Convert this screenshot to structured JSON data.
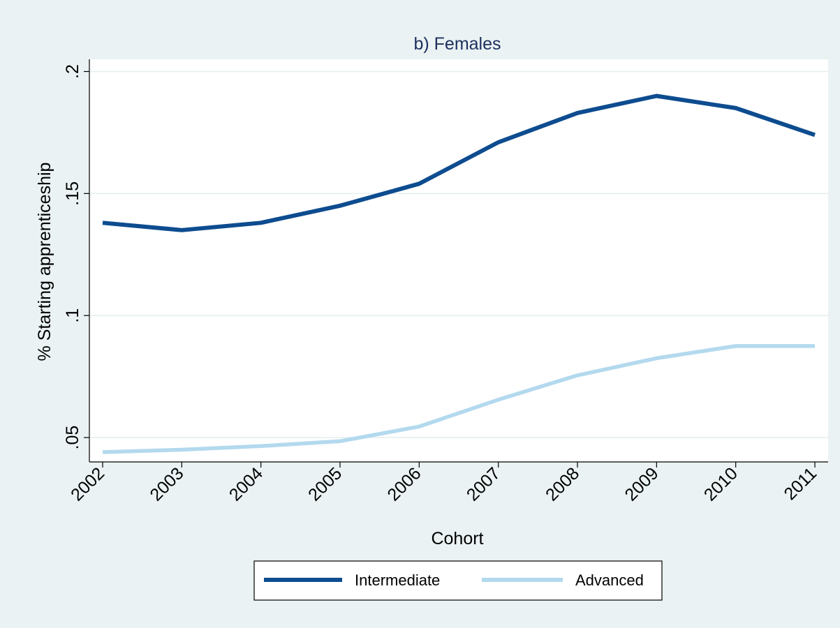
{
  "chart_data": {
    "type": "line",
    "title": "b) Females",
    "xlabel": "Cohort",
    "ylabel": "% Starting apprenticeship",
    "categories": [
      "2002",
      "2003",
      "2004",
      "2005",
      "2006",
      "2007",
      "2008",
      "2009",
      "2010",
      "2011"
    ],
    "ylim": [
      0.04,
      0.205
    ],
    "yticks": [
      0.05,
      0.1,
      0.15,
      0.2
    ],
    "ytick_labels": [
      ".05",
      ".1",
      ".15",
      ".2"
    ],
    "grid": true,
    "legend_position": "bottom",
    "series": [
      {
        "name": "Intermediate",
        "color": "#0d4c8f",
        "values": [
          0.138,
          0.135,
          0.138,
          0.145,
          0.154,
          0.171,
          0.183,
          0.19,
          0.185,
          0.174
        ]
      },
      {
        "name": "Advanced",
        "color": "#b3d9ee",
        "values": [
          0.044,
          0.045,
          0.0465,
          0.0485,
          0.0545,
          0.0655,
          0.0755,
          0.0825,
          0.0875,
          0.0875
        ]
      }
    ]
  }
}
